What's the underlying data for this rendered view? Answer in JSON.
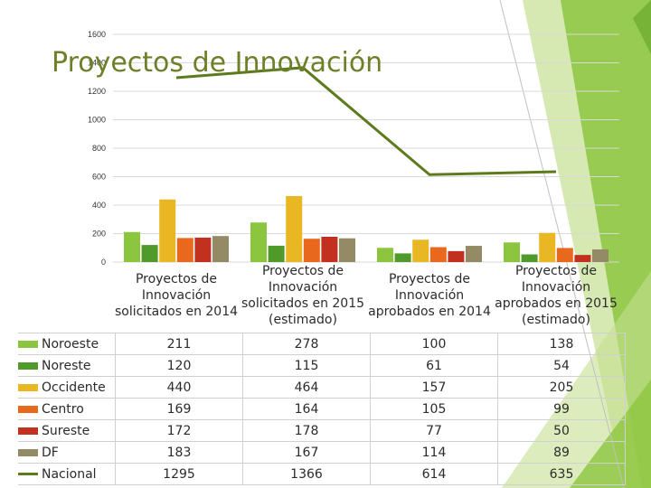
{
  "title": "Proyectos de Innovación",
  "chart_data": {
    "type": "bar+line",
    "title": "Proyectos de Innovación",
    "categories": [
      "Proyectos de Innovación solicitados en 2014",
      "Proyectos de Innovación solicitados en 2015 (estimado)",
      "Proyectos de Innovación aprobados en 2014",
      "Proyectos de Innovación aprobados en 2015 (estimado)"
    ],
    "category_lines": [
      [
        "Proyectos de",
        "Innovación",
        "solicitados en 2014"
      ],
      [
        "Proyectos de",
        "Innovación",
        "solicitados en 2015",
        "(estimado)"
      ],
      [
        "Proyectos de",
        "Innovación",
        "aprobados en 2014"
      ],
      [
        "Proyectos de",
        "Innovación",
        "aprobados en 2015",
        "(estimado)"
      ]
    ],
    "ylim": [
      0,
      1600
    ],
    "yticks": [
      0,
      200,
      400,
      600,
      800,
      1000,
      1200,
      1400,
      1600
    ],
    "series": [
      {
        "name": "Noroeste",
        "type": "bar",
        "color": "#8cc63f",
        "values": [
          211,
          278,
          100,
          138
        ]
      },
      {
        "name": "Noreste",
        "type": "bar",
        "color": "#4f9a2a",
        "values": [
          120,
          115,
          61,
          54
        ]
      },
      {
        "name": "Occidente",
        "type": "bar",
        "color": "#e9b724",
        "values": [
          440,
          464,
          157,
          205
        ]
      },
      {
        "name": "Centro",
        "type": "bar",
        "color": "#e8681e",
        "values": [
          169,
          164,
          105,
          99
        ]
      },
      {
        "name": "Sureste",
        "type": "bar",
        "color": "#c2311f",
        "values": [
          172,
          178,
          77,
          50
        ]
      },
      {
        "name": "DF",
        "type": "bar",
        "color": "#958a66",
        "values": [
          183,
          167,
          114,
          89
        ]
      },
      {
        "name": "Nacional",
        "type": "line",
        "color": "#5d7a1c",
        "values": [
          1295,
          1366,
          614,
          635
        ]
      }
    ],
    "data_table": true,
    "grid": true
  }
}
